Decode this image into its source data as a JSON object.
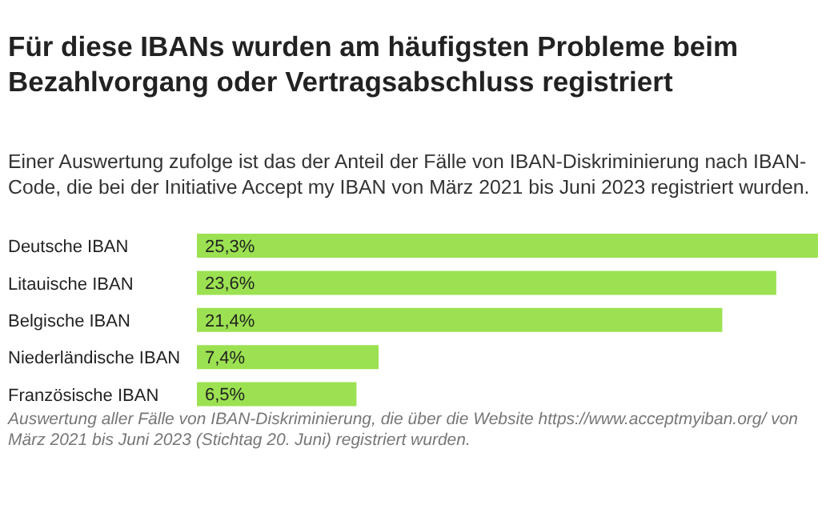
{
  "chart_data": {
    "type": "bar",
    "orientation": "horizontal",
    "title": "Für diese IBANs wurden am häufigsten Probleme beim Bezahlvorgang oder Vertragsabschluss registriert",
    "subtitle": "Einer Auswertung zufolge ist das der Anteil der Fälle von IBAN-Diskriminierung nach IBAN-Code, die bei der Initiative Accept my IBAN von März 2021 bis Juni 2023 registriert wurden.",
    "categories": [
      "Deutsche IBAN",
      "Litauische IBAN",
      "Belgische IBAN",
      "Niederländische IBAN",
      "Französische IBAN"
    ],
    "values": [
      25.3,
      23.6,
      21.4,
      7.4,
      6.5
    ],
    "value_labels": [
      "25,3%",
      "23,6%",
      "21,4%",
      "7,4%",
      "6,5%"
    ],
    "color": "#9be151",
    "annotations": [
      "Auswertung aller Fälle von IBAN-Diskriminierung, die über die Website https://www.acceptmyiban.org/ von März 2021 bis Juni 2023 (Stichtag 20. Juni) registriert wurden."
    ]
  }
}
